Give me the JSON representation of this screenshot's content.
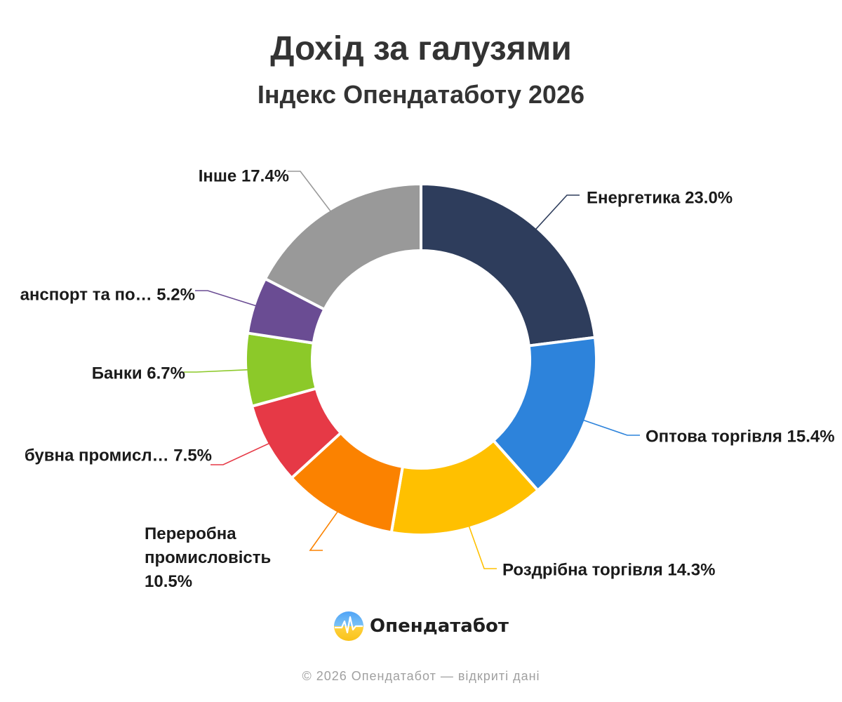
{
  "header": {
    "title": "Дохід за галузями",
    "subtitle": "Індекс Опендатаботу 2026"
  },
  "chart_data": {
    "type": "pie",
    "donut": true,
    "title": "Дохід за галузями",
    "subtitle": "Індекс Опендатаботу 2026",
    "legend": "none",
    "data_labels": "outside-with-leaders",
    "slices": [
      {
        "label": "Енергетика",
        "display_label": "Енергетика 23.0%",
        "value": 23.0,
        "color": "#2E3D5C"
      },
      {
        "label": "Оптова торгівля",
        "display_label": "Оптова торгівля 15.4%",
        "value": 15.4,
        "color": "#2D83DB"
      },
      {
        "label": "Роздрібна торгівля",
        "display_label": "Роздрібна торгівля 14.3%",
        "value": 14.3,
        "color": "#FFC000"
      },
      {
        "label": "Переробна промисловість",
        "display_label": "Переробна промисловість 10.5%",
        "value": 10.5,
        "color": "#FB8200"
      },
      {
        "label": "Добувна промисловість",
        "display_label": "бувна промисл… 7.5%",
        "value": 7.5,
        "color": "#E63946"
      },
      {
        "label": "Банки",
        "display_label": "Банки 6.7%",
        "value": 6.7,
        "color": "#8CC929"
      },
      {
        "label": "Транспорт та пошта",
        "display_label": "анспорт та по… 5.2%",
        "value": 5.2,
        "color": "#6A4C93"
      },
      {
        "label": "Інше",
        "display_label": "Інше 17.4%",
        "value": 17.4,
        "color": "#999999"
      }
    ]
  },
  "brand": {
    "name": "Опендатабот",
    "logo_icon": "opendatabot-logo-icon"
  },
  "footer": {
    "text": "© 2026 Опендатабот — відкриті дані"
  }
}
